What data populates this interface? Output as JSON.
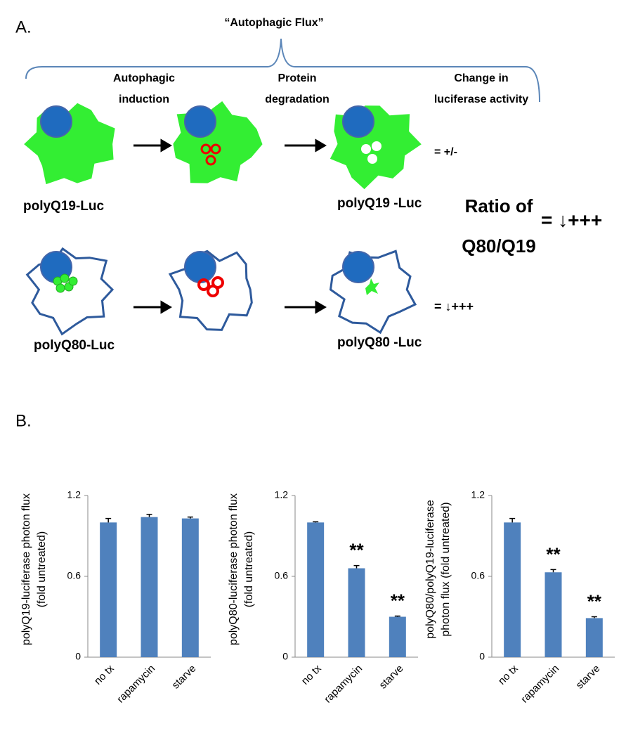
{
  "diagram": {
    "panel_a": "A.",
    "panel_b": "B.",
    "title": "“Autophagic Flux”",
    "steps": [
      [
        "Autophagic",
        "induction"
      ],
      [
        "Protein",
        "degradation"
      ],
      [
        "Change in",
        "luciferase activity"
      ]
    ],
    "row1_left": "polyQ19-Luc",
    "row1_right": "polyQ19 -Luc",
    "row1_result": "= +/-",
    "row2_left": "polyQ80-Luc",
    "row2_right": "polyQ80 -Luc",
    "row2_result": "= ↓+++",
    "ratio": [
      "Ratio of",
      "Q80/Q19"
    ],
    "ratio_result": "= ↓+++"
  },
  "chart_data": [
    {
      "type": "bar",
      "ylabel": [
        "polyQ19-luciferase photon flux",
        "(fold untreated)"
      ],
      "categories": [
        "no tx",
        "rapamycin",
        "starve"
      ],
      "values": [
        1.0,
        1.04,
        1.03
      ],
      "errors": [
        0.03,
        0.02,
        0.01
      ],
      "color": "#4f81bd",
      "ylim": [
        0,
        1.2
      ],
      "yticks": [
        0,
        0.6,
        1.2
      ],
      "annotations": []
    },
    {
      "type": "bar",
      "ylabel": [
        "polyQ80-luciferase photon flux",
        "(fold untreated)"
      ],
      "categories": [
        "no tx",
        "rapamycin",
        "starve"
      ],
      "values": [
        1.0,
        0.66,
        0.3
      ],
      "errors": [
        0.005,
        0.02,
        0.005
      ],
      "color": "#4f81bd",
      "ylim": [
        0,
        1.2
      ],
      "yticks": [
        0,
        0.6,
        1.2
      ],
      "annotations": [
        {
          "category": "rapamycin",
          "text": "**"
        },
        {
          "category": "starve",
          "text": "**"
        }
      ]
    },
    {
      "type": "bar",
      "ylabel": [
        "polyQ80/polyQ19-luciferase",
        "photon flux (fold untreated)"
      ],
      "categories": [
        "no tx",
        "rapamycin",
        "starve"
      ],
      "values": [
        1.0,
        0.63,
        0.29
      ],
      "errors": [
        0.03,
        0.02,
        0.01
      ],
      "color": "#4f81bd",
      "ylim": [
        0,
        1.2
      ],
      "yticks": [
        0,
        0.6,
        1.2
      ],
      "annotations": [
        {
          "category": "rapamycin",
          "text": "**"
        },
        {
          "category": "starve",
          "text": "**"
        }
      ]
    }
  ]
}
